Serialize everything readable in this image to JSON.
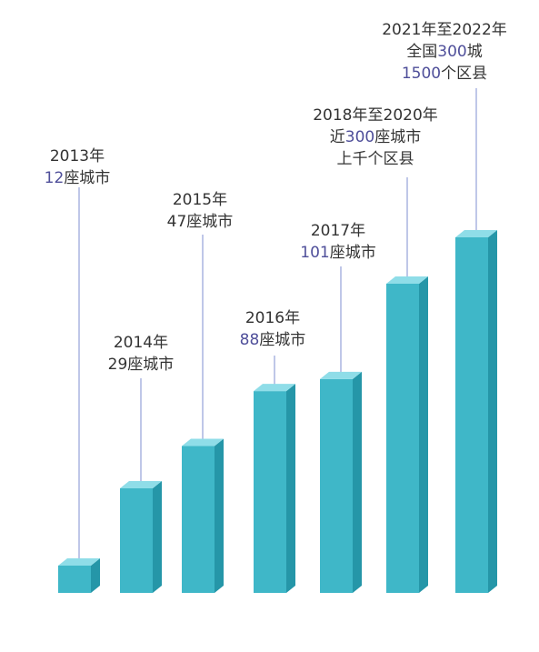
{
  "colors": {
    "bar_front": "#3fb7c8",
    "bar_side": "#2596a8",
    "bar_top": "#8fdde8",
    "leader_line": "#7f8fd0",
    "text": "#333333",
    "highlight": "#4f4f9a"
  },
  "chart_data": {
    "type": "bar",
    "style": "3d-column",
    "categories": [
      "2013年",
      "2014年",
      "2015年",
      "2016年",
      "2017年",
      "2018年至2020年",
      "2021年至2022年"
    ],
    "values": [
      12,
      29,
      47,
      88,
      101,
      300,
      300
    ],
    "annotations": [
      [
        {
          "text": "2013年"
        },
        {
          "parts": [
            {
              "text": "12",
              "hl": true
            },
            {
              "text": "座城市"
            }
          ]
        }
      ],
      [
        {
          "text": "2014年"
        },
        {
          "text": "29座城市"
        }
      ],
      [
        {
          "text": "2015年"
        },
        {
          "text": "47座城市"
        }
      ],
      [
        {
          "text": "2016年"
        },
        {
          "parts": [
            {
              "text": "88",
              "hl": true
            },
            {
              "text": "座城市"
            }
          ]
        }
      ],
      [
        {
          "text": "2017年"
        },
        {
          "parts": [
            {
              "text": "101",
              "hl": true
            },
            {
              "text": "座城市"
            }
          ]
        }
      ],
      [
        {
          "text": "2018年至2020年"
        },
        {
          "parts": [
            {
              "text": "近"
            },
            {
              "text": "300",
              "hl": true
            },
            {
              "text": "座城市"
            }
          ]
        },
        {
          "text": "上千个区县"
        }
      ],
      [
        {
          "text": "2021年至2022年"
        },
        {
          "parts": [
            {
              "text": "全国"
            },
            {
              "text": "300",
              "hl": true
            },
            {
              "text": "城"
            }
          ]
        },
        {
          "parts": [
            {
              "text": "1500",
              "hl": true
            },
            {
              "text": "个区县"
            }
          ]
        }
      ]
    ],
    "grid": false,
    "legend": "none"
  }
}
